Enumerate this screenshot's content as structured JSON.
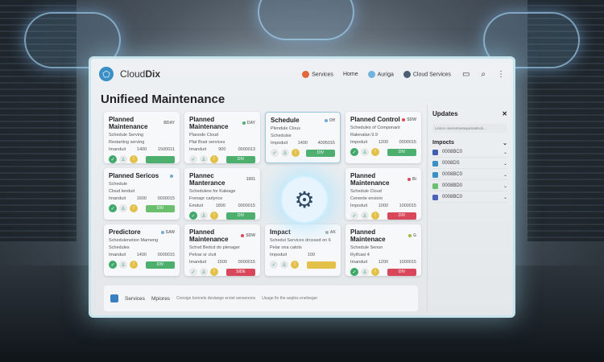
{
  "app": {
    "brand_prefix": "Cloud",
    "brand_suffix": "Dix"
  },
  "nav": {
    "items": [
      {
        "label": "Services",
        "color": "#e0683a"
      },
      {
        "label": "Home",
        "color": ""
      },
      {
        "label": "Auriga",
        "color": "#6fb3de"
      },
      {
        "label": "Cloud Services",
        "color": "#4b5e73"
      }
    ],
    "tools": [
      "chat-icon",
      "search-icon",
      "more-icon"
    ]
  },
  "page_title": "Unifieed Maintenance",
  "cards": [
    {
      "title": "Planned Maintenance",
      "badge": "BDAY",
      "badge_color": "",
      "lines": [
        "Schedule Serving",
        "Restarting serving"
      ],
      "meta": [
        "Imanduit",
        "1400",
        "1500011"
      ],
      "button": "",
      "button_color": "#4caf6e",
      "icons": [
        "#3fa86a",
        "#e8e8e8",
        "#e3c04a"
      ]
    },
    {
      "title": "Planned Maintenance",
      "badge": "DAY",
      "badge_color": "#4caf6e",
      "lines": [
        "Planode Cloud",
        "Plat Brair services"
      ],
      "meta": [
        "Imanduit",
        "900",
        "0000013"
      ],
      "button": "DIV",
      "button_color": "#4caf6e",
      "icons": [
        "#e8e8e8",
        "#e8e8e8",
        "#e3c04a"
      ]
    },
    {
      "title": "Schedule",
      "badge": "Off",
      "badge_color": "#6fa9d6",
      "lines": [
        "Plendule Clous",
        "Schedulse"
      ],
      "meta": [
        "Impoduit",
        "1400",
        "4005015"
      ],
      "button": "DIV",
      "button_color": "#4caf6e",
      "icons": [
        "#e8e8e8",
        "#e8e8e8",
        "#e3c04a"
      ],
      "selected": true
    },
    {
      "title": "Planned Control",
      "badge": "SDW",
      "badge_color": "#d9485a",
      "lines": [
        "Schedules of Componant",
        "Ralenalan 9.9"
      ],
      "meta": [
        "Impoduit",
        "1200",
        "0000015"
      ],
      "button": "DIV",
      "button_color": "#4caf6e",
      "icons": [
        "#3fa86a",
        "#e8e8e8",
        "#e3c04a"
      ]
    },
    {
      "title": "Planned Sericos",
      "badge": "",
      "badge_color": "#6fa9d6",
      "lines": [
        "Schedule",
        "Cloud lenduit"
      ],
      "meta": [
        "Imanduit",
        "1600",
        "0000015"
      ],
      "button": "DIV",
      "button_color": "#6cbf6e",
      "icons": [
        "#3fa86a",
        "#e8e8e8",
        "#e3c04a"
      ]
    },
    {
      "title": "Plannec Manterance",
      "badge": "1001",
      "badge_color": "",
      "lines": [
        "Schedulere for Kaleage",
        "Frenapr carlyrice"
      ],
      "meta": [
        "Emduit",
        "1800",
        "0000015"
      ],
      "button": "DIV",
      "button_color": "#4caf6e",
      "icons": [
        "#3fa86a",
        "#e8e8e8",
        "#e3c04a"
      ]
    },
    {
      "title": "",
      "badge": "",
      "badge_color": "",
      "lines": [
        "",
        ""
      ],
      "meta": [
        "",
        "",
        ""
      ],
      "button": "",
      "button_color": "",
      "icons": [],
      "hidden": true
    },
    {
      "title": "Planned Maintenance",
      "badge": "Bi",
      "badge_color": "#d9485a",
      "lines": [
        "Schedule Cloud",
        "Cenente envioni"
      ],
      "meta": [
        "Impoduit",
        "1000",
        "1000015"
      ],
      "button": "DIV",
      "button_color": "#d9485a",
      "icons": [
        "#e8e8e8",
        "#e8e8e8",
        "#e3c04a"
      ]
    },
    {
      "title": "Predictore",
      "badge": "SAW",
      "badge_color": "#6fa9d6",
      "lines": [
        "Schedulenetion Marneng",
        "Schedules"
      ],
      "meta": [
        "Imanduit",
        "1400",
        "0000015"
      ],
      "button": "DIV",
      "button_color": "#4caf6e",
      "icons": [
        "#3fa86a",
        "#e8e8e8",
        "#e3c04a"
      ]
    },
    {
      "title": "Planned Maintenance",
      "badge": "SDW",
      "badge_color": "#d9485a",
      "lines": [
        "Schvd Bedcd do plenager",
        "Pelvar or cluit"
      ],
      "meta": [
        "Imanduit",
        "1500",
        "0000015"
      ],
      "button": "SIDE",
      "button_color": "#d9485a",
      "icons": [
        "#e8e8e8",
        "#e8e8e8",
        "#e3c04a"
      ]
    },
    {
      "title": "Impact",
      "badge": "AK",
      "badge_color": "#9aa",
      "lines": [
        "Schedul Services drossed on 6",
        "Pelar ona catots"
      ],
      "meta": [
        "Impoduit",
        "100",
        ""
      ],
      "button": "",
      "button_color": "#e3c04a",
      "icons": [
        "#e8e8e8",
        "#e8e8e8",
        "#e3c04a"
      ]
    },
    {
      "title": "Planned Maintenace",
      "badge": "G",
      "badge_color": "#9bbf3a",
      "lines": [
        "Schedule Senun",
        "Ryifcasi 4"
      ],
      "meta": [
        "Imanduit",
        "1200",
        "1000015"
      ],
      "button": "DIV",
      "button_color": "#d9485a",
      "icons": [
        "#3fa86a",
        "#e8e8e8",
        "#e3c04a"
      ]
    }
  ],
  "footer": {
    "items": [
      "Services",
      "Mpiores"
    ],
    "notes": [
      "Consign bonnels deslange erviet sensenons",
      "Usage fio the aeplos enelsegar"
    ]
  },
  "updates": {
    "title": "Updates",
    "input_placeholder": "Linsce oneromnerepomanleck...",
    "impacts_title": "Impocts",
    "items": [
      {
        "label": "0008BC0",
        "color": "#3d5fb0"
      },
      {
        "label": "0008DS",
        "color": "#3a8fc4"
      },
      {
        "label": "0008BC0",
        "color": "#3a8fc4"
      },
      {
        "label": "0008BD0",
        "color": "#6cbf6e"
      },
      {
        "label": "0008BC0",
        "color": "#4a62b8"
      }
    ]
  }
}
